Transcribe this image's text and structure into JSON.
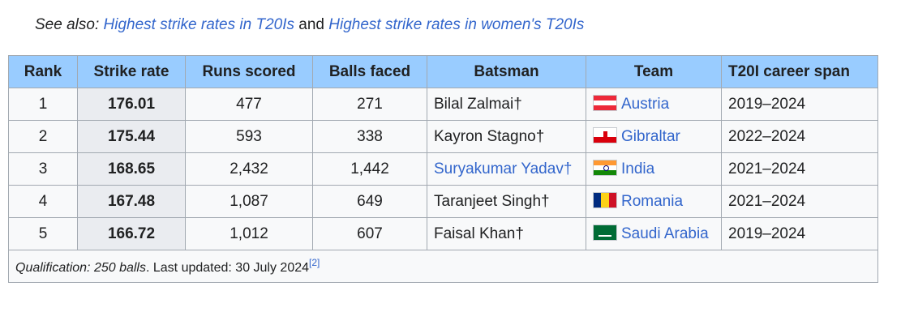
{
  "see_also": {
    "prefix": "See also: ",
    "link1": "Highest strike rates in T20Is",
    "separator": " and ",
    "link2": "Highest strike rates in women's T20Is"
  },
  "table": {
    "headers": [
      "Rank",
      "Strike rate",
      "Runs scored",
      "Balls faced",
      "Batsman",
      "Team",
      "T20I career span"
    ],
    "rows": [
      {
        "rank": "1",
        "strike_rate": "176.01",
        "runs": "477",
        "balls": "271",
        "batsman": "Bilal Zalmai†",
        "batsman_link": false,
        "team": "Austria",
        "flag": "austria",
        "span": "2019–2024"
      },
      {
        "rank": "2",
        "strike_rate": "175.44",
        "runs": "593",
        "balls": "338",
        "batsman": "Kayron Stagno†",
        "batsman_link": false,
        "team": "Gibraltar",
        "flag": "gibraltar",
        "span": "2022–2024"
      },
      {
        "rank": "3",
        "strike_rate": "168.65",
        "runs": "2,432",
        "balls": "1,442",
        "batsman": "Suryakumar Yadav†",
        "batsman_link": true,
        "team": "India",
        "flag": "india",
        "span": "2021–2024"
      },
      {
        "rank": "4",
        "strike_rate": "167.48",
        "runs": "1,087",
        "balls": "649",
        "batsman": "Taranjeet Singh†",
        "batsman_link": false,
        "team": "Romania",
        "flag": "romania",
        "span": "2021–2024"
      },
      {
        "rank": "5",
        "strike_rate": "166.72",
        "runs": "1,012",
        "balls": "607",
        "batsman": "Faisal Khan†",
        "batsman_link": false,
        "team": "Saudi Arabia",
        "flag": "saudi",
        "span": "2019–2024"
      }
    ],
    "footnote": {
      "qualification": "Qualification: 250 balls",
      "updated": ". Last updated: 30 July 2024",
      "ref": "[2]"
    }
  },
  "colors": {
    "header_bg": "#99ccff",
    "link": "#3366cc",
    "strike_rate_cell_bg": "#eaecf0",
    "border": "#a2a9b1"
  }
}
